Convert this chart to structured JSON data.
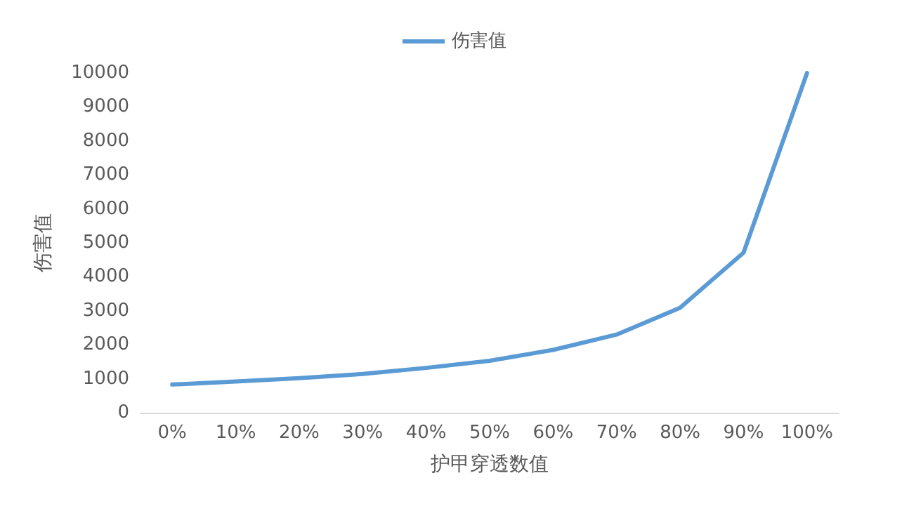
{
  "chart_data": {
    "type": "line",
    "xlabel": "护甲穿透数值",
    "ylabel": "伤害值",
    "categories": [
      "0%",
      "10%",
      "20%",
      "30%",
      "40%",
      "50%",
      "60%",
      "70%",
      "80%",
      "90%",
      "100%"
    ],
    "series": [
      {
        "name": "伤害值",
        "color": "#5b9bd5",
        "values": [
          830,
          920,
          1020,
          1140,
          1320,
          1530,
          1850,
          2300,
          3090,
          4710,
          10000
        ]
      }
    ],
    "ylim": [
      0,
      10000
    ],
    "yticks": [
      0,
      1000,
      2000,
      3000,
      4000,
      5000,
      6000,
      7000,
      8000,
      9000,
      10000
    ],
    "grid": false,
    "legend": "top",
    "marker": "none",
    "line_style": "solid"
  }
}
